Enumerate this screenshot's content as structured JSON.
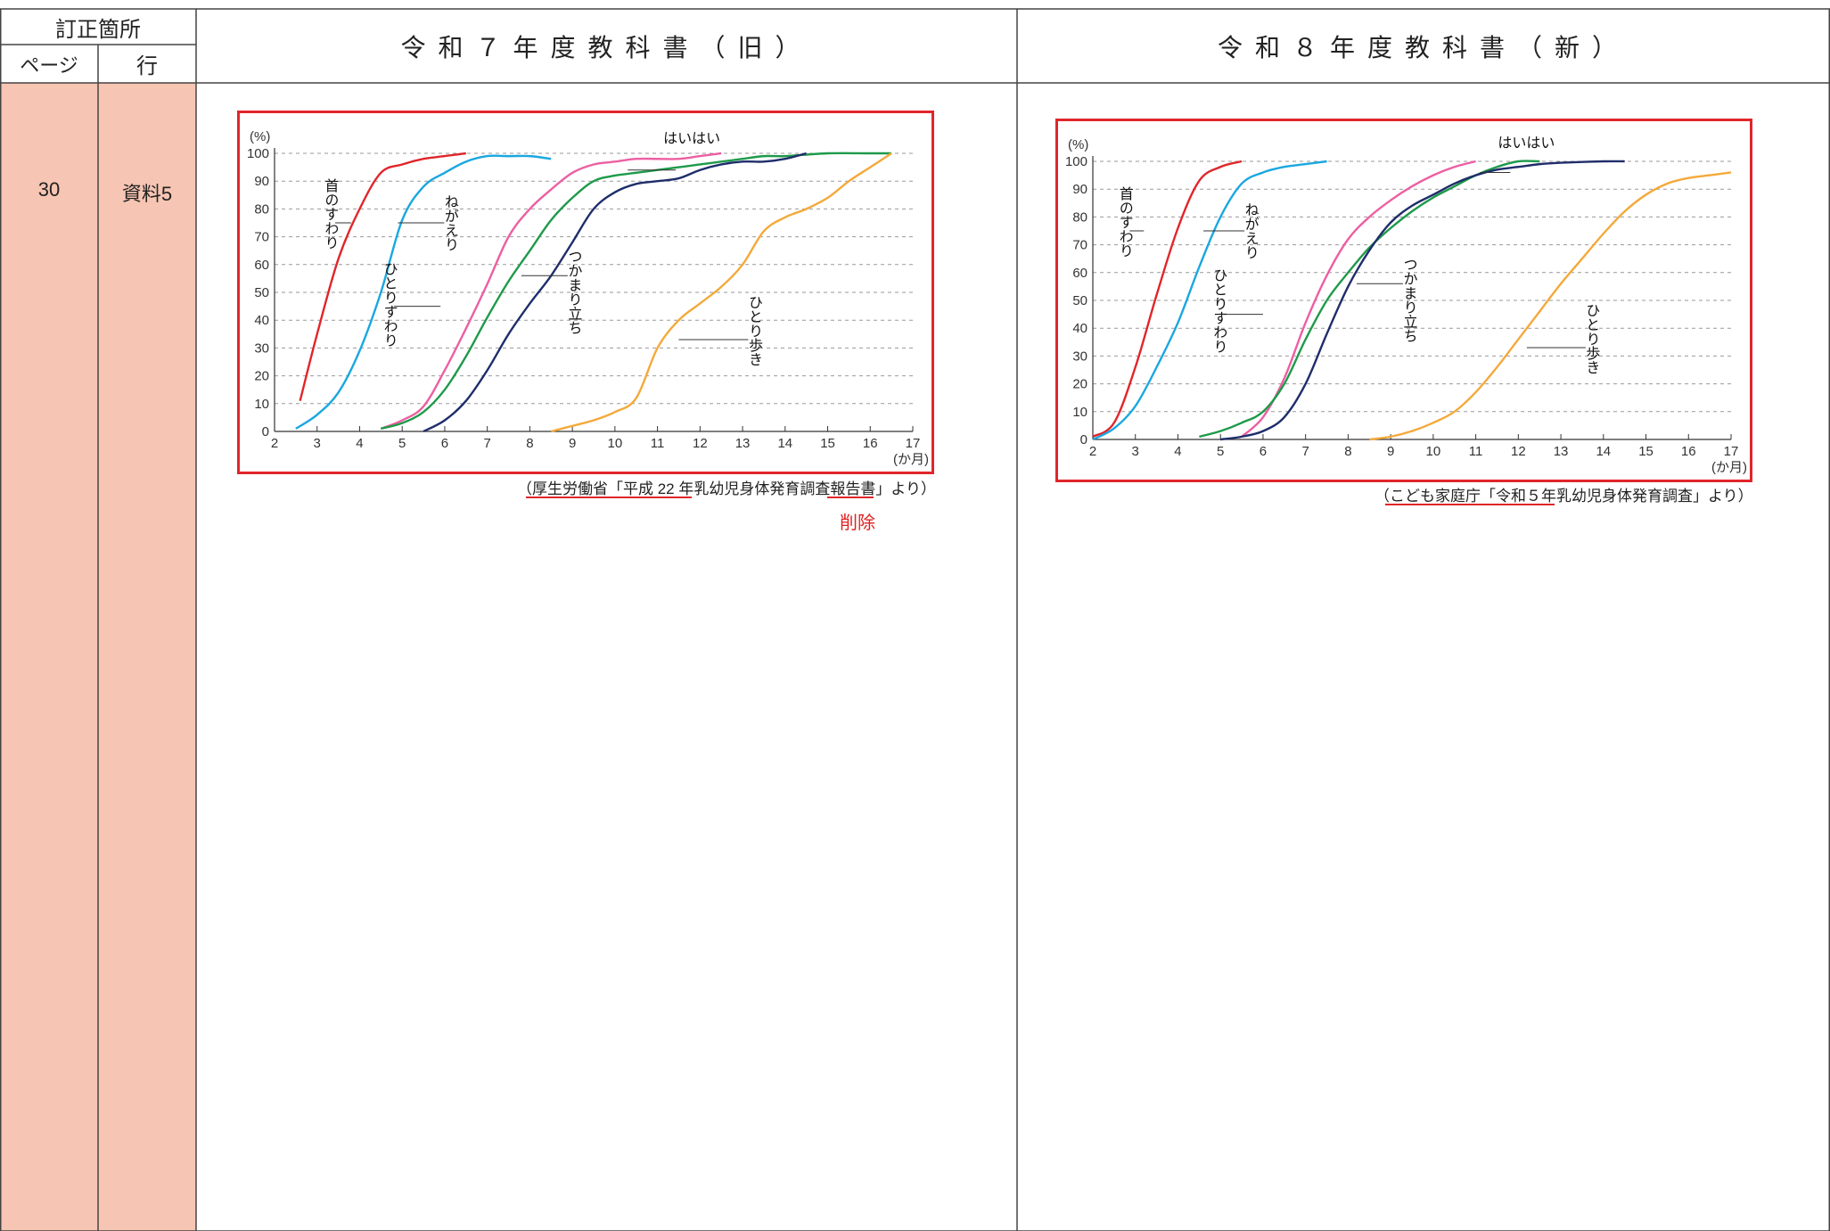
{
  "header": {
    "correction_location": "訂正箇所",
    "page_col": "ページ",
    "line_col": "行",
    "old_title": "令和７年度教科書（旧）",
    "new_title": "令和８年度教科書（新）"
  },
  "row": {
    "page": "30",
    "line": "資料5"
  },
  "old_source": "（厚生労働省「平成 22 年乳幼児身体発育調査報告書」より）",
  "delete_label": "削除",
  "new_source": "（こども家庭庁「令和５年乳幼児身体発育調査」より）",
  "colors": {
    "red": "#e0262b",
    "blue": "#1aa7e0",
    "pink": "#ec5fa2",
    "green": "#1e9a4a",
    "navy": "#1f2d6b",
    "orange": "#f4a93a",
    "frame": "#e0262b"
  },
  "chart_data": [
    {
      "type": "line",
      "title": "",
      "xlabel": "(か月)",
      "ylabel": "(%)",
      "xlim": [
        2,
        17
      ],
      "ylim": [
        0,
        100
      ],
      "x_ticks": [
        2,
        3,
        4,
        5,
        6,
        7,
        8,
        9,
        10,
        11,
        12,
        13,
        14,
        15,
        16,
        17
      ],
      "y_ticks": [
        0,
        10,
        20,
        30,
        40,
        50,
        60,
        70,
        80,
        90,
        100
      ],
      "grid": true,
      "series": [
        {
          "name": "首のすわり",
          "color": "#e0262b",
          "points": [
            [
              2.6,
              11
            ],
            [
              3.0,
              35
            ],
            [
              3.5,
              62
            ],
            [
              4.0,
              80
            ],
            [
              4.5,
              93
            ],
            [
              5.0,
              96
            ],
            [
              5.5,
              98
            ],
            [
              6.0,
              99
            ],
            [
              6.5,
              100
            ]
          ]
        },
        {
          "name": "ねがえり",
          "color": "#1aa7e0",
          "points": [
            [
              2.5,
              1
            ],
            [
              3.0,
              6
            ],
            [
              3.5,
              14
            ],
            [
              4.0,
              29
            ],
            [
              4.5,
              50
            ],
            [
              5.0,
              76
            ],
            [
              5.5,
              88
            ],
            [
              6.0,
              93
            ],
            [
              6.5,
              97
            ],
            [
              7.0,
              99
            ],
            [
              7.5,
              99
            ],
            [
              8.0,
              99
            ],
            [
              8.5,
              98
            ]
          ]
        },
        {
          "name": "ひとりすわり",
          "color": "#ec5fa2",
          "points": [
            [
              4.5,
              1
            ],
            [
              5.0,
              4
            ],
            [
              5.5,
              9
            ],
            [
              6.0,
              22
            ],
            [
              6.5,
              37
            ],
            [
              7.0,
              53
            ],
            [
              7.5,
              70
            ],
            [
              8.0,
              80
            ],
            [
              8.5,
              87
            ],
            [
              9.0,
              93
            ],
            [
              9.5,
              96
            ],
            [
              10.0,
              97
            ],
            [
              10.5,
              98
            ],
            [
              11.0,
              98
            ],
            [
              11.5,
              98
            ],
            [
              12.0,
              99
            ],
            [
              12.5,
              100
            ]
          ]
        },
        {
          "name": "はいはい",
          "color": "#1e9a4a",
          "points": [
            [
              4.5,
              1
            ],
            [
              5.0,
              3
            ],
            [
              5.5,
              7
            ],
            [
              6.0,
              15
            ],
            [
              6.5,
              27
            ],
            [
              7.0,
              41
            ],
            [
              7.5,
              54
            ],
            [
              8.0,
              65
            ],
            [
              8.5,
              76
            ],
            [
              9.0,
              84
            ],
            [
              9.5,
              90
            ],
            [
              10.0,
              92
            ],
            [
              10.5,
              93
            ],
            [
              11.0,
              94
            ],
            [
              11.5,
              95
            ],
            [
              12.0,
              96
            ],
            [
              12.5,
              97
            ],
            [
              13.0,
              98
            ],
            [
              13.5,
              99
            ],
            [
              14.0,
              99
            ],
            [
              15.0,
              100
            ],
            [
              16.0,
              100
            ],
            [
              16.5,
              100
            ]
          ]
        },
        {
          "name": "つかまり立ち",
          "color": "#1f2d6b",
          "points": [
            [
              5.5,
              0
            ],
            [
              6.0,
              4
            ],
            [
              6.5,
              11
            ],
            [
              7.0,
              22
            ],
            [
              7.5,
              35
            ],
            [
              8.0,
              46
            ],
            [
              8.5,
              56
            ],
            [
              9.0,
              68
            ],
            [
              9.5,
              80
            ],
            [
              10.0,
              86
            ],
            [
              10.5,
              89
            ],
            [
              11.0,
              90
            ],
            [
              11.5,
              91
            ],
            [
              12.0,
              94
            ],
            [
              12.5,
              96
            ],
            [
              13.0,
              97
            ],
            [
              13.5,
              97
            ],
            [
              14.0,
              98
            ],
            [
              14.5,
              100
            ]
          ]
        },
        {
          "name": "ひとり歩き",
          "color": "#f4a93a",
          "points": [
            [
              8.5,
              0
            ],
            [
              9.0,
              2
            ],
            [
              9.5,
              4
            ],
            [
              10.0,
              7
            ],
            [
              10.5,
              12
            ],
            [
              11.0,
              30
            ],
            [
              11.5,
              40
            ],
            [
              12.0,
              46
            ],
            [
              12.5,
              52
            ],
            [
              13.0,
              60
            ],
            [
              13.5,
              72
            ],
            [
              14.0,
              77
            ],
            [
              14.5,
              80
            ],
            [
              15.0,
              84
            ],
            [
              15.5,
              90
            ],
            [
              16.0,
              95
            ],
            [
              16.5,
              100
            ]
          ]
        }
      ],
      "series_labels": [
        "首のすわり",
        "ねがえり",
        "ひとりすわり",
        "はいはい",
        "つかまり立ち",
        "ひとり歩き"
      ]
    },
    {
      "type": "line",
      "title": "",
      "xlabel": "(か月)",
      "ylabel": "(%)",
      "xlim": [
        2,
        17
      ],
      "ylim": [
        0,
        100
      ],
      "x_ticks": [
        2,
        3,
        4,
        5,
        6,
        7,
        8,
        9,
        10,
        11,
        12,
        13,
        14,
        15,
        16,
        17
      ],
      "y_ticks": [
        0,
        10,
        20,
        30,
        40,
        50,
        60,
        70,
        80,
        90,
        100
      ],
      "grid": true,
      "series": [
        {
          "name": "首のすわり",
          "color": "#e0262b",
          "points": [
            [
              2.0,
              1
            ],
            [
              2.5,
              6
            ],
            [
              3.0,
              26
            ],
            [
              3.5,
              52
            ],
            [
              4.0,
              76
            ],
            [
              4.5,
              93
            ],
            [
              5.0,
              98
            ],
            [
              5.5,
              100
            ]
          ]
        },
        {
          "name": "ねがえり",
          "color": "#1aa7e0",
          "points": [
            [
              2.0,
              0
            ],
            [
              2.5,
              4
            ],
            [
              3.0,
              12
            ],
            [
              3.5,
              26
            ],
            [
              4.0,
              42
            ],
            [
              4.5,
              62
            ],
            [
              5.0,
              80
            ],
            [
              5.5,
              92
            ],
            [
              6.0,
              96
            ],
            [
              6.5,
              98
            ],
            [
              7.0,
              99
            ],
            [
              7.5,
              100
            ]
          ]
        },
        {
          "name": "ひとりすわり",
          "color": "#ec5fa2",
          "points": [
            [
              5.5,
              1
            ],
            [
              6.0,
              8
            ],
            [
              6.5,
              22
            ],
            [
              7.0,
              42
            ],
            [
              7.5,
              59
            ],
            [
              8.0,
              72
            ],
            [
              8.5,
              80
            ],
            [
              9.0,
              86
            ],
            [
              9.5,
              91
            ],
            [
              10.0,
              95
            ],
            [
              10.5,
              98
            ],
            [
              11.0,
              100
            ]
          ]
        },
        {
          "name": "はいはい",
          "color": "#1e9a4a",
          "points": [
            [
              4.5,
              1
            ],
            [
              5.0,
              3
            ],
            [
              5.5,
              6
            ],
            [
              6.0,
              10
            ],
            [
              6.5,
              20
            ],
            [
              7.0,
              36
            ],
            [
              7.5,
              50
            ],
            [
              8.0,
              60
            ],
            [
              8.5,
              69
            ],
            [
              9.0,
              76
            ],
            [
              9.5,
              82
            ],
            [
              10.0,
              87
            ],
            [
              10.5,
              91
            ],
            [
              11.0,
              95
            ],
            [
              11.5,
              98
            ],
            [
              12.0,
              100
            ],
            [
              12.5,
              100
            ]
          ]
        },
        {
          "name": "つかまり立ち",
          "color": "#1f2d6b",
          "points": [
            [
              5.0,
              0
            ],
            [
              5.5,
              1
            ],
            [
              6.0,
              3
            ],
            [
              6.5,
              8
            ],
            [
              7.0,
              20
            ],
            [
              7.5,
              38
            ],
            [
              8.0,
              55
            ],
            [
              8.5,
              68
            ],
            [
              9.0,
              78
            ],
            [
              9.5,
              84
            ],
            [
              10.0,
              88
            ],
            [
              10.5,
              92
            ],
            [
              11.0,
              95
            ],
            [
              11.5,
              97
            ],
            [
              12.0,
              98
            ],
            [
              12.5,
              99
            ],
            [
              13.0,
              99.5
            ],
            [
              14.0,
              100
            ],
            [
              14.5,
              100
            ]
          ]
        },
        {
          "name": "ひとり歩き",
          "color": "#f4a93a",
          "points": [
            [
              8.5,
              0
            ],
            [
              9.0,
              1
            ],
            [
              9.5,
              3
            ],
            [
              10.0,
              6
            ],
            [
              10.5,
              10
            ],
            [
              11.0,
              17
            ],
            [
              11.5,
              26
            ],
            [
              12.0,
              36
            ],
            [
              12.5,
              46
            ],
            [
              13.0,
              56
            ],
            [
              13.5,
              65
            ],
            [
              14.0,
              74
            ],
            [
              14.5,
              82
            ],
            [
              15.0,
              88
            ],
            [
              15.5,
              92
            ],
            [
              16.0,
              94
            ],
            [
              16.5,
              95
            ],
            [
              17.0,
              96
            ]
          ]
        }
      ],
      "series_labels": [
        "首のすわり",
        "ねがえり",
        "ひとりすわり",
        "はいはい",
        "つかまり立ち",
        "ひとり歩き"
      ]
    }
  ]
}
